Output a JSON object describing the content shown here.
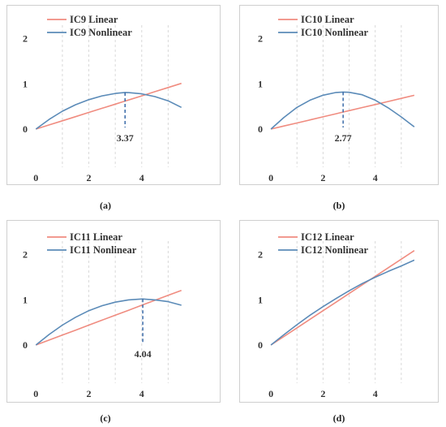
{
  "colors": {
    "linear": "#f08c80",
    "nonlinear": "#5b8bb8",
    "annotation": "#3a6aa8"
  },
  "chart_data": [
    {
      "type": "line",
      "caption": "(a)",
      "xlim": [
        -0.5,
        6
      ],
      "ylim": [
        -0.7,
        2.3
      ],
      "xticks": [
        0,
        2,
        4
      ],
      "yticks": [
        0,
        1,
        2
      ],
      "x": [
        0,
        0.5,
        1,
        1.5,
        2,
        2.5,
        3,
        3.37,
        3.5,
        4,
        4.5,
        5,
        5.5
      ],
      "series": [
        {
          "name": "IC9 Linear",
          "kind": "linear",
          "y": [
            0,
            0.092,
            0.184,
            0.276,
            0.368,
            0.46,
            0.552,
            0.62,
            0.644,
            0.736,
            0.828,
            0.92,
            1.012
          ]
        },
        {
          "name": "IC9 Nonlinear",
          "kind": "nonlinear",
          "y": [
            0,
            0.215,
            0.395,
            0.54,
            0.65,
            0.735,
            0.79,
            0.81,
            0.808,
            0.78,
            0.72,
            0.625,
            0.48
          ]
        }
      ],
      "annotation": {
        "x": 3.37,
        "y": 0.81,
        "label": "3.37"
      }
    },
    {
      "type": "line",
      "caption": "(b)",
      "xlim": [
        -0.5,
        6
      ],
      "ylim": [
        -0.7,
        2.3
      ],
      "xticks": [
        0,
        2,
        4
      ],
      "yticks": [
        0,
        1,
        2
      ],
      "x": [
        0,
        0.5,
        1,
        1.5,
        2,
        2.5,
        2.77,
        3,
        3.5,
        4,
        4.5,
        5,
        5.5
      ],
      "series": [
        {
          "name": "IC10 Linear",
          "kind": "linear",
          "y": [
            0,
            0.068,
            0.136,
            0.204,
            0.272,
            0.34,
            0.377,
            0.408,
            0.476,
            0.544,
            0.612,
            0.68,
            0.748
          ]
        },
        {
          "name": "IC10 Nonlinear",
          "kind": "nonlinear",
          "y": [
            0,
            0.26,
            0.48,
            0.64,
            0.75,
            0.81,
            0.82,
            0.815,
            0.76,
            0.64,
            0.47,
            0.27,
            0.05
          ]
        }
      ],
      "annotation": {
        "x": 2.77,
        "y": 0.82,
        "label": "2.77"
      }
    },
    {
      "type": "line",
      "caption": "(c)",
      "xlim": [
        -0.5,
        6
      ],
      "ylim": [
        -0.7,
        2.3
      ],
      "xticks": [
        0,
        2,
        4
      ],
      "yticks": [
        0,
        1,
        2
      ],
      "x": [
        0,
        0.5,
        1,
        1.5,
        2,
        2.5,
        3,
        3.5,
        4,
        4.04,
        4.5,
        5,
        5.5
      ],
      "series": [
        {
          "name": "IC11 Linear",
          "kind": "linear",
          "y": [
            0,
            0.11,
            0.22,
            0.33,
            0.44,
            0.55,
            0.66,
            0.77,
            0.88,
            0.889,
            0.99,
            1.1,
            1.21
          ]
        },
        {
          "name": "IC11 Nonlinear",
          "kind": "nonlinear",
          "y": [
            0,
            0.235,
            0.44,
            0.615,
            0.76,
            0.87,
            0.95,
            1.0,
            1.02,
            1.02,
            1.0,
            0.96,
            0.88
          ]
        }
      ],
      "annotation": {
        "x": 4.04,
        "y": 1.02,
        "label": "4.04"
      }
    },
    {
      "type": "line",
      "caption": "(d)",
      "xlim": [
        -0.5,
        6
      ],
      "ylim": [
        -0.7,
        2.3
      ],
      "xticks": [
        0,
        2,
        4
      ],
      "yticks": [
        0,
        1,
        2
      ],
      "x": [
        0,
        0.5,
        1,
        1.5,
        2,
        2.5,
        3,
        3.5,
        4,
        4.5,
        5,
        5.5
      ],
      "series": [
        {
          "name": "IC12 Linear",
          "kind": "linear",
          "y": [
            0,
            0.19,
            0.38,
            0.57,
            0.76,
            0.95,
            1.14,
            1.33,
            1.52,
            1.71,
            1.9,
            2.09
          ]
        },
        {
          "name": "IC12 Nonlinear",
          "kind": "nonlinear",
          "y": [
            0,
            0.23,
            0.45,
            0.66,
            0.85,
            1.03,
            1.2,
            1.36,
            1.5,
            1.63,
            1.75,
            1.88
          ]
        }
      ],
      "annotation": null
    }
  ]
}
